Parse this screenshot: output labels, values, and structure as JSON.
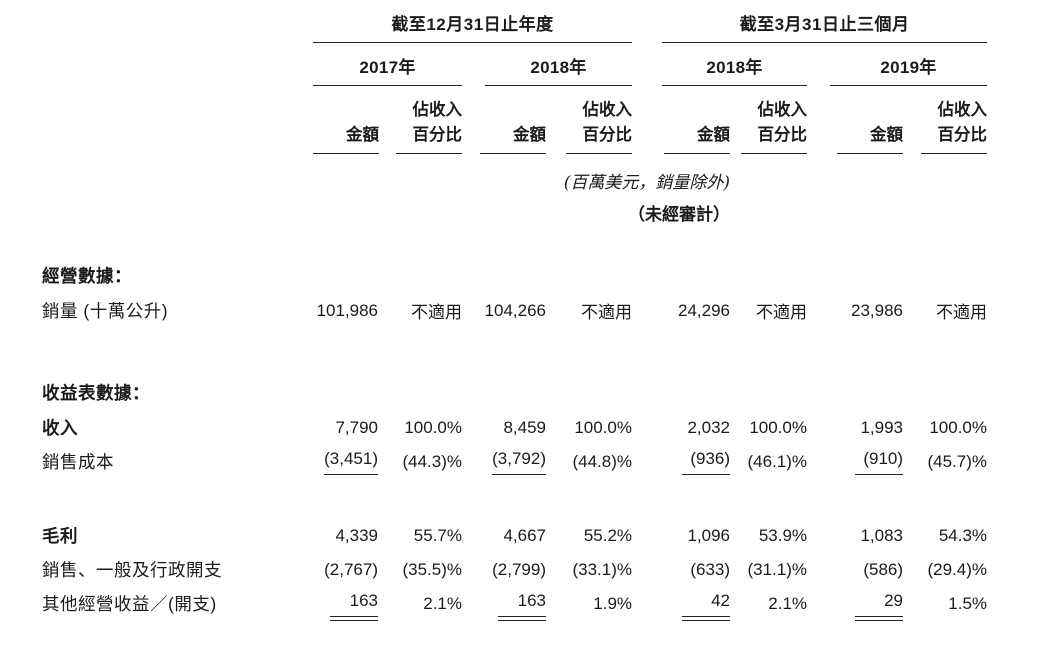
{
  "table": {
    "col_groups": [
      {
        "title": "截至12月31日止年度",
        "years": [
          "2017年",
          "2018年"
        ]
      },
      {
        "title": "截至3月31日止三個月",
        "years": [
          "2018年",
          "2019年"
        ]
      }
    ],
    "subheader": {
      "amount": "金額",
      "pct_line1": "佔收入",
      "pct_line2": "百分比"
    },
    "notes": {
      "unit": "(百萬美元，銷量除外)",
      "unaudited": "（未經審計）"
    },
    "sections": [
      {
        "heading": "經營數據：",
        "rows": [
          {
            "label": "銷量 (十萬公升)",
            "bold": false,
            "rule": null,
            "values": [
              "101,986",
              "不適用",
              "104,266",
              "不適用",
              "24,296",
              "不適用",
              "23,986",
              "不適用"
            ]
          }
        ]
      },
      {
        "heading": "收益表數據：",
        "rows": [
          {
            "label": "收入",
            "bold": true,
            "rule": null,
            "values": [
              "7,790",
              "100.0%",
              "8,459",
              "100.0%",
              "2,032",
              "100.0%",
              "1,993",
              "100.0%"
            ]
          },
          {
            "label": "銷售成本",
            "bold": false,
            "rule": "single",
            "values": [
              "(3,451)",
              "(44.3)%",
              "(3,792)",
              "(44.8)%",
              "(936)",
              "(46.1)%",
              "(910)",
              "(45.7)%"
            ]
          }
        ]
      },
      {
        "heading": null,
        "rows": [
          {
            "label": "毛利",
            "bold": true,
            "rule": null,
            "values": [
              "4,339",
              "55.7%",
              "4,667",
              "55.2%",
              "1,096",
              "53.9%",
              "1,083",
              "54.3%"
            ]
          },
          {
            "label": "銷售、一般及行政開支",
            "bold": false,
            "rule": null,
            "values": [
              "(2,767)",
              "(35.5)%",
              "(2,799)",
              "(33.1)%",
              "(633)",
              "(31.1)%",
              "(586)",
              "(29.4)%"
            ]
          },
          {
            "label": "其他經營收益／(開支)",
            "bold": false,
            "rule": "double",
            "values": [
              "163",
              "2.1%",
              "163",
              "1.9%",
              "42",
              "2.1%",
              "29",
              "1.5%"
            ]
          }
        ]
      }
    ]
  }
}
